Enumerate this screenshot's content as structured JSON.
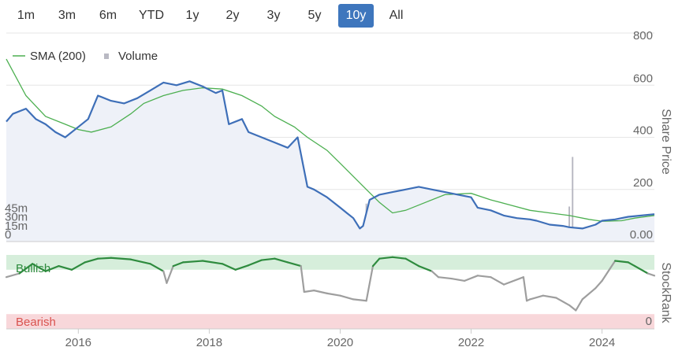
{
  "range_buttons": [
    {
      "label": "1m",
      "active": false
    },
    {
      "label": "3m",
      "active": false
    },
    {
      "label": "6m",
      "active": false
    },
    {
      "label": "YTD",
      "active": false
    },
    {
      "label": "1y",
      "active": false
    },
    {
      "label": "2y",
      "active": false
    },
    {
      "label": "3y",
      "active": false
    },
    {
      "label": "5y",
      "active": false
    },
    {
      "label": "10y",
      "active": true
    },
    {
      "label": "All",
      "active": false
    }
  ],
  "colors": {
    "price": "#3e6fb8",
    "sma": "#4caf50",
    "volume": "#b9b9c3",
    "bullish_band": "#d6eedb",
    "bearish_band": "#f8d7da",
    "stockrank_bull": "#2e8b3e",
    "stockrank_neutral": "#9e9e9e",
    "stockrank_bear": "#d9534f",
    "active_button": "#3e76bd"
  },
  "chart_data": [
    {
      "type": "line",
      "legend": [
        {
          "name": "SMA (200)",
          "marker": "line"
        },
        {
          "name": "Volume",
          "marker": "square"
        }
      ],
      "legend_placement": "top-left",
      "x_ticks": [
        "2016",
        "2018",
        "2020",
        "2022",
        "2024"
      ],
      "xlim": [
        2014.9,
        2024.8
      ],
      "y_right": {
        "label": "Share Price",
        "ticks": [
          "800",
          "600",
          "400",
          "200",
          "0.00"
        ],
        "ylim": [
          0,
          800
        ]
      },
      "y_left": {
        "label": "",
        "ticks": [
          "45m",
          "30m",
          "15m",
          "0"
        ],
        "ylim": [
          0,
          150
        ]
      },
      "series": [
        {
          "name": "Share Price",
          "x": [
            2014.9,
            2015.0,
            2015.2,
            2015.35,
            2015.5,
            2015.65,
            2015.8,
            2016.0,
            2016.15,
            2016.3,
            2016.5,
            2016.7,
            2016.9,
            2017.1,
            2017.3,
            2017.5,
            2017.7,
            2017.9,
            2018.1,
            2018.2,
            2018.3,
            2018.5,
            2018.6,
            2018.8,
            2019.0,
            2019.2,
            2019.35,
            2019.5,
            2019.6,
            2019.8,
            2020.0,
            2020.1,
            2020.2,
            2020.3,
            2020.35,
            2020.45,
            2020.6,
            2020.8,
            2021.0,
            2021.2,
            2021.4,
            2021.6,
            2021.8,
            2022.0,
            2022.1,
            2022.3,
            2022.5,
            2022.7,
            2022.9,
            2023.0,
            2023.2,
            2023.4,
            2023.5,
            2023.7,
            2023.9,
            2024.0,
            2024.2,
            2024.4,
            2024.6,
            2024.8
          ],
          "values": [
            460,
            490,
            510,
            470,
            450,
            420,
            400,
            440,
            470,
            560,
            540,
            530,
            550,
            580,
            610,
            600,
            615,
            595,
            570,
            580,
            450,
            470,
            420,
            400,
            380,
            360,
            400,
            210,
            200,
            170,
            130,
            110,
            90,
            50,
            60,
            160,
            180,
            190,
            200,
            210,
            200,
            190,
            180,
            170,
            130,
            120,
            100,
            90,
            85,
            80,
            65,
            60,
            55,
            50,
            65,
            80,
            85,
            95,
            100,
            105
          ]
        },
        {
          "name": "SMA (200)",
          "x": [
            2014.9,
            2015.2,
            2015.5,
            2015.8,
            2016.0,
            2016.2,
            2016.5,
            2016.8,
            2017.0,
            2017.3,
            2017.6,
            2017.9,
            2018.2,
            2018.5,
            2018.8,
            2019.0,
            2019.3,
            2019.5,
            2019.8,
            2020.0,
            2020.2,
            2020.4,
            2020.6,
            2020.8,
            2021.0,
            2021.3,
            2021.6,
            2022.0,
            2022.3,
            2022.6,
            2022.9,
            2023.2,
            2023.5,
            2023.8,
            2024.0,
            2024.3,
            2024.5,
            2024.8
          ],
          "values": [
            700,
            560,
            480,
            450,
            430,
            420,
            440,
            490,
            530,
            560,
            580,
            590,
            585,
            560,
            520,
            480,
            440,
            400,
            350,
            300,
            250,
            200,
            150,
            110,
            120,
            150,
            180,
            185,
            160,
            140,
            120,
            110,
            100,
            85,
            78,
            80,
            90,
            100
          ]
        },
        {
          "name": "Volume",
          "x": [
            2015.0,
            2015.3,
            2015.6,
            2016.0,
            2016.5,
            2017.0,
            2017.5,
            2018.0,
            2018.5,
            2019.0,
            2019.3,
            2019.6,
            2019.9,
            2020.2,
            2020.35,
            2020.4,
            2020.5,
            2020.6,
            2020.9,
            2021.3,
            2021.6,
            2021.9,
            2022.1,
            2022.5,
            2022.8,
            2023.0,
            2023.3,
            2023.5,
            2023.55,
            2023.7,
            2024.0,
            2024.3,
            2024.6
          ],
          "values": [
            2,
            3,
            4,
            2,
            3,
            2,
            3,
            2,
            3,
            4,
            2,
            5,
            6,
            8,
            25,
            65,
            10,
            5,
            4,
            6,
            8,
            5,
            12,
            15,
            10,
            12,
            20,
            60,
            145,
            12,
            8,
            6,
            5
          ]
        }
      ]
    },
    {
      "type": "line",
      "y_right": {
        "label": "StockRank",
        "ticks": [
          "0"
        ],
        "ylim": [
          0,
          100
        ]
      },
      "bands": [
        {
          "label": "Bullish",
          "from": 80,
          "to": 100
        },
        {
          "label": "Bearish",
          "from": 0,
          "to": 20
        }
      ],
      "series": [
        {
          "name": "StockRank",
          "x": [
            2014.9,
            2015.1,
            2015.3,
            2015.5,
            2015.7,
            2015.9,
            2016.1,
            2016.3,
            2016.5,
            2016.8,
            2017.1,
            2017.3,
            2017.35,
            2017.45,
            2017.6,
            2017.9,
            2018.2,
            2018.4,
            2018.6,
            2018.8,
            2019.0,
            2019.2,
            2019.4,
            2019.45,
            2019.6,
            2019.8,
            2020.0,
            2020.2,
            2020.4,
            2020.5,
            2020.6,
            2020.8,
            2021.0,
            2021.2,
            2021.4,
            2021.5,
            2021.7,
            2021.9,
            2022.1,
            2022.3,
            2022.5,
            2022.8,
            2022.85,
            2022.9,
            2023.1,
            2023.3,
            2023.5,
            2023.6,
            2023.7,
            2023.9,
            2024.0,
            2024.2,
            2024.4,
            2024.5,
            2024.7,
            2024.8
          ],
          "values": [
            70,
            75,
            88,
            78,
            85,
            80,
            90,
            95,
            96,
            94,
            88,
            78,
            62,
            85,
            90,
            92,
            88,
            80,
            86,
            93,
            95,
            90,
            85,
            50,
            52,
            48,
            45,
            40,
            38,
            85,
            95,
            97,
            95,
            85,
            78,
            70,
            68,
            65,
            72,
            70,
            60,
            70,
            38,
            40,
            45,
            42,
            32,
            25,
            40,
            55,
            65,
            92,
            90,
            85,
            75,
            72
          ]
        }
      ]
    }
  ]
}
